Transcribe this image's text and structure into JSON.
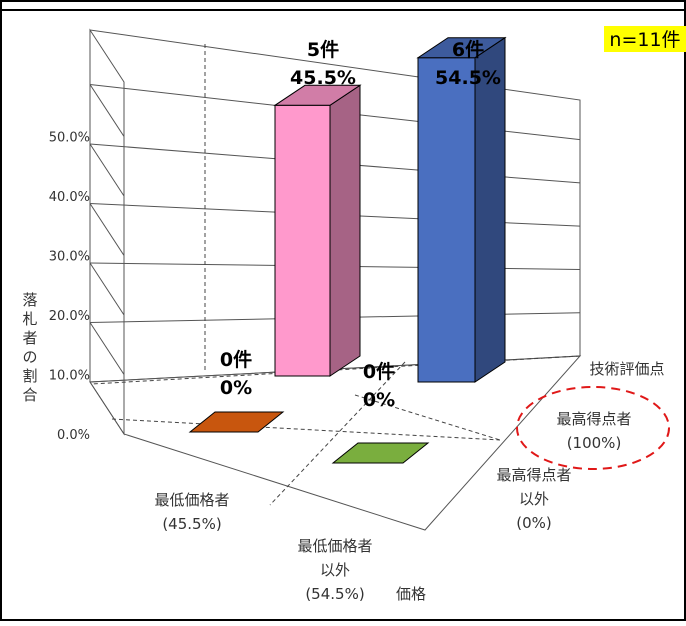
{
  "note": "n=11件",
  "chart_data": {
    "type": "bar",
    "subtype": "3d-bar",
    "y_ticks": [
      "0.0%",
      "10.0%",
      "20.0%",
      "30.0%",
      "40.0%",
      "50.0%"
    ],
    "ylim": [
      0,
      50
    ],
    "ylabel_chars": [
      "落",
      "札",
      "者",
      "の",
      "割",
      "合"
    ],
    "x_axis_title": "価格",
    "depth_axis_title": "技術評価点",
    "x_categories": [
      {
        "lines": [
          "最低価格者",
          "(45.5%)"
        ]
      },
      {
        "lines": [
          "最低価格者",
          "以外",
          "(54.5%)"
        ]
      }
    ],
    "depth_categories": [
      {
        "lines": [
          "最高得点者",
          "(100%)"
        ],
        "highlighted": true
      },
      {
        "lines": [
          "最高得点者",
          "以外",
          "(0%)"
        ]
      }
    ],
    "bars": [
      {
        "x_category": "最低価格者",
        "depth_category": "最高得点者",
        "value": 45.5,
        "count_label": "5件",
        "pct_label": "45.5%",
        "color": "#FF99CC"
      },
      {
        "x_category": "最低価格者以外",
        "depth_category": "最高得点者",
        "value": 54.5,
        "count_label": "6件",
        "pct_label": "54.5%",
        "color": "#4A6FC0"
      },
      {
        "x_category": "最低価格者",
        "depth_category": "最高得点者以外",
        "value": 0,
        "count_label": "0件",
        "pct_label": "0%",
        "color": "#C8560E"
      },
      {
        "x_category": "最低価格者以外",
        "depth_category": "最高得点者以外",
        "value": 0,
        "count_label": "0件",
        "pct_label": "0%",
        "color": "#7AAE3E"
      }
    ]
  }
}
